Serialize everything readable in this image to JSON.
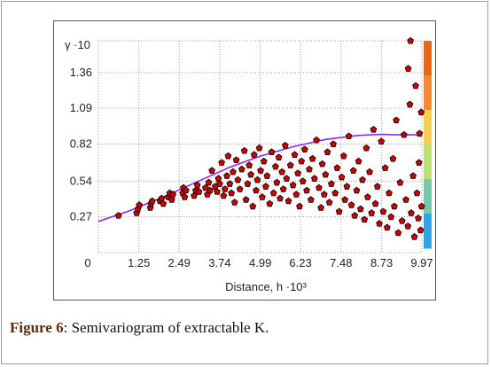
{
  "figure": {
    "caption_label": "Figure 6",
    "caption_text": ": Semivariogram of extractable K."
  },
  "chart_data": {
    "type": "scatter",
    "ylabel": "γ ·10",
    "xlabel": "Distance, h ·10³",
    "x_ticks": [
      "0",
      "1.25",
      "2.49",
      "3.74",
      "4.99",
      "6.23",
      "7.48",
      "8.73",
      "9.97"
    ],
    "y_ticks": [
      "0.27",
      "0.54",
      "0.82",
      "1.09",
      "1.36"
    ],
    "xlim": [
      0,
      9.97
    ],
    "ylim": [
      0,
      1.6
    ],
    "grid": true,
    "colors": {
      "points": "#cc0000",
      "point_edge": "#000000",
      "model_line": "#8a2be2",
      "grid": "#9a9a9a",
      "scale_bar": [
        "#e8681a",
        "#f08a3a",
        "#f7cf52",
        "#bde07a",
        "#77c8a8",
        "#35a3de"
      ]
    },
    "series": [
      {
        "type": "scatter",
        "points": [
          [
            0.62,
            0.28
          ],
          [
            1.18,
            0.3
          ],
          [
            1.22,
            0.33
          ],
          [
            1.26,
            0.36
          ],
          [
            1.6,
            0.34
          ],
          [
            1.62,
            0.37
          ],
          [
            1.66,
            0.39
          ],
          [
            1.9,
            0.39
          ],
          [
            1.95,
            0.41
          ],
          [
            2.0,
            0.37
          ],
          [
            2.15,
            0.42
          ],
          [
            2.2,
            0.45
          ],
          [
            2.26,
            0.4
          ],
          [
            2.3,
            0.44
          ],
          [
            2.6,
            0.45
          ],
          [
            2.62,
            0.49
          ],
          [
            2.66,
            0.42
          ],
          [
            2.7,
            0.47
          ],
          [
            2.95,
            0.43
          ],
          [
            3.0,
            0.47
          ],
          [
            3.05,
            0.51
          ],
          [
            3.1,
            0.46
          ],
          [
            3.3,
            0.49
          ],
          [
            3.36,
            0.44
          ],
          [
            3.4,
            0.53
          ],
          [
            3.44,
            0.47
          ],
          [
            3.5,
            0.62
          ],
          [
            3.6,
            0.5
          ],
          [
            3.66,
            0.46
          ],
          [
            3.7,
            0.56
          ],
          [
            3.74,
            0.52
          ],
          [
            3.8,
            0.68
          ],
          [
            3.86,
            0.43
          ],
          [
            3.9,
            0.48
          ],
          [
            3.96,
            0.58
          ],
          [
            4.0,
            0.73
          ],
          [
            4.05,
            0.52
          ],
          [
            4.1,
            0.45
          ],
          [
            4.15,
            0.61
          ],
          [
            4.2,
            0.38
          ],
          [
            4.25,
            0.7
          ],
          [
            4.3,
            0.55
          ],
          [
            4.36,
            0.48
          ],
          [
            4.42,
            0.63
          ],
          [
            4.5,
            0.77
          ],
          [
            4.55,
            0.4
          ],
          [
            4.6,
            0.52
          ],
          [
            4.65,
            0.66
          ],
          [
            4.7,
            0.59
          ],
          [
            4.76,
            0.35
          ],
          [
            4.8,
            0.74
          ],
          [
            4.86,
            0.47
          ],
          [
            4.9,
            0.55
          ],
          [
            4.96,
            0.79
          ],
          [
            5.0,
            0.62
          ],
          [
            5.05,
            0.42
          ],
          [
            5.1,
            0.69
          ],
          [
            5.16,
            0.5
          ],
          [
            5.2,
            0.58
          ],
          [
            5.28,
            0.37
          ],
          [
            5.34,
            0.76
          ],
          [
            5.4,
            0.45
          ],
          [
            5.46,
            0.65
          ],
          [
            5.5,
            0.53
          ],
          [
            5.56,
            0.72
          ],
          [
            5.6,
            0.41
          ],
          [
            5.66,
            0.61
          ],
          [
            5.7,
            0.48
          ],
          [
            5.76,
            0.81
          ],
          [
            5.8,
            0.56
          ],
          [
            5.86,
            0.39
          ],
          [
            5.92,
            0.66
          ],
          [
            6.0,
            0.51
          ],
          [
            6.05,
            0.74
          ],
          [
            6.1,
            0.44
          ],
          [
            6.15,
            0.6
          ],
          [
            6.2,
            0.35
          ],
          [
            6.26,
            0.69
          ],
          [
            6.3,
            0.54
          ],
          [
            6.36,
            0.78
          ],
          [
            6.42,
            0.47
          ],
          [
            6.5,
            0.63
          ],
          [
            6.55,
            0.4
          ],
          [
            6.6,
            0.71
          ],
          [
            6.66,
            0.56
          ],
          [
            6.72,
            0.85
          ],
          [
            6.8,
            0.49
          ],
          [
            6.86,
            0.34
          ],
          [
            6.9,
            0.67
          ],
          [
            6.96,
            0.44
          ],
          [
            7.0,
            0.59
          ],
          [
            7.06,
            0.76
          ],
          [
            7.12,
            0.38
          ],
          [
            7.18,
            0.52
          ],
          [
            7.24,
            0.82
          ],
          [
            7.3,
            0.45
          ],
          [
            7.36,
            0.64
          ],
          [
            7.42,
            0.31
          ],
          [
            7.5,
            0.57
          ],
          [
            7.56,
            0.73
          ],
          [
            7.6,
            0.4
          ],
          [
            7.66,
            0.5
          ],
          [
            7.72,
            0.88
          ],
          [
            7.8,
            0.36
          ],
          [
            7.86,
            0.62
          ],
          [
            7.9,
            0.28
          ],
          [
            7.96,
            0.47
          ],
          [
            8.02,
            0.69
          ],
          [
            8.08,
            0.33
          ],
          [
            8.14,
            0.55
          ],
          [
            8.2,
            0.25
          ],
          [
            8.26,
            0.79
          ],
          [
            8.3,
            0.42
          ],
          [
            8.36,
            0.61
          ],
          [
            8.42,
            0.3
          ],
          [
            8.48,
            0.93
          ],
          [
            8.54,
            0.37
          ],
          [
            8.6,
            0.5
          ],
          [
            8.66,
            0.22
          ],
          [
            8.72,
            0.84
          ],
          [
            8.78,
            0.31
          ],
          [
            8.84,
            0.64
          ],
          [
            8.9,
            0.19
          ],
          [
            8.96,
            0.45
          ],
          [
            9.02,
            0.27
          ],
          [
            9.08,
            0.71
          ],
          [
            9.12,
            0.35
          ],
          [
            9.18,
            1.0
          ],
          [
            9.24,
            0.15
          ],
          [
            9.3,
            0.53
          ],
          [
            9.36,
            0.24
          ],
          [
            9.42,
            0.89
          ],
          [
            9.48,
            0.4
          ],
          [
            9.54,
            0.2
          ],
          [
            9.6,
            1.12
          ],
          [
            9.64,
            0.3
          ],
          [
            9.7,
            0.58
          ],
          [
            9.74,
            0.12
          ],
          [
            9.78,
            1.26
          ],
          [
            9.82,
            0.45
          ],
          [
            9.86,
            0.26
          ],
          [
            9.9,
            0.9
          ],
          [
            9.93,
            0.17
          ],
          [
            9.95,
            1.06
          ],
          [
            9.96,
            0.35
          ],
          [
            9.55,
            1.39
          ],
          [
            9.62,
            1.6
          ],
          [
            9.88,
            0.68
          ]
        ]
      },
      {
        "type": "line",
        "x": [
          0,
          1.0,
          2.0,
          3.0,
          4.0,
          5.0,
          6.0,
          7.0,
          8.0,
          8.7,
          9.2,
          9.97
        ],
        "y": [
          0.235,
          0.32,
          0.42,
          0.53,
          0.64,
          0.73,
          0.8,
          0.855,
          0.885,
          0.893,
          0.89,
          0.89
        ]
      }
    ]
  }
}
